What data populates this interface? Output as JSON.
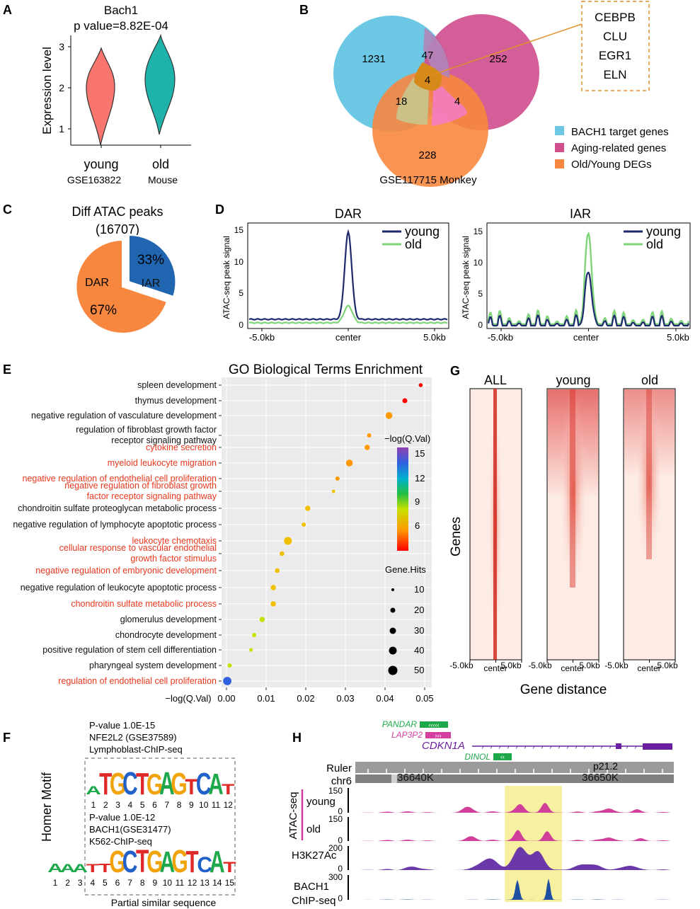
{
  "panels": {
    "A": "A",
    "B": "B",
    "C": "C",
    "D": "D",
    "E": "E",
    "F": "F",
    "G": "G",
    "H": "H"
  },
  "panelA": {
    "title1": "Bach1",
    "title2": "p value=8.82E-04",
    "ylabel": "Expression level",
    "yticks": [
      "1",
      "2",
      "3"
    ],
    "groups": [
      "young",
      "old"
    ],
    "caption_left": "GSE163822",
    "caption_right": "Mouse",
    "colors": {
      "young": "#f8766d",
      "old": "#1fb2aa"
    }
  },
  "panelB": {
    "counts": {
      "blue_only": "1231",
      "pink_only": "252",
      "orange_only": "228",
      "blue_pink": "47",
      "blue_orange": "18",
      "pink_orange": "4",
      "center": "4"
    },
    "genes": [
      "CEBPB",
      "CLU",
      "EGR1",
      "ELN"
    ],
    "legend": [
      "BACH1 target genes",
      "Aging-related genes",
      "Old/Young  DEGs"
    ],
    "caption": "GSE117715  Monkey",
    "colors": {
      "blue": "#6cc8e4",
      "pink": "#d0508e",
      "orange": "#f7873f",
      "center": "#d58a1a"
    }
  },
  "panelC": {
    "title1": "Diff ATAC peaks",
    "title2": "(16707)",
    "dar_label": "DAR",
    "dar_pct": "67%",
    "iar_label": "IAR",
    "iar_pct": "33%"
  },
  "panelD": {
    "dar_title": "DAR",
    "iar_title": "IAR",
    "ylabel": "ATAC-seq peak signal",
    "dar_yticks": [
      "0",
      "5",
      "10",
      "15"
    ],
    "iar_yticks": [
      "0",
      "5",
      "10",
      "15"
    ],
    "xticks": [
      "-5.0kb",
      "center",
      "5.0kb"
    ],
    "legend": [
      "young",
      "old"
    ],
    "colors": {
      "young": "#1f2a6e",
      "old": "#7fd47a"
    }
  },
  "panelE": {
    "title": "GO Biological Terms Enrichment",
    "xlabel": "−log(Q.Val)",
    "xticks": [
      "0.00",
      "0.01",
      "0.02",
      "0.03",
      "0.04",
      "0.05"
    ],
    "color_legend_title": "−log(Q.Val)",
    "color_ticks": [
      "15",
      "12",
      "9",
      "6"
    ],
    "size_legend_title": "Gene.Hits",
    "size_ticks": [
      "10",
      "20",
      "30",
      "40",
      "50"
    ],
    "terms": [
      {
        "line1": "spleen development",
        "line2": "",
        "red": false,
        "x": 0.049,
        "hits": 12,
        "q": 6
      },
      {
        "line1": "thymus development",
        "line2": "",
        "red": false,
        "x": 0.045,
        "hits": 18,
        "q": 6.5
      },
      {
        "line1": "negative regulation of vasculature development",
        "line2": "",
        "red": false,
        "x": 0.041,
        "hits": 30,
        "q": 7
      },
      {
        "line1": "regulation of fibroblast growth factor",
        "line2": "receptor signaling pathway",
        "red": false,
        "x": 0.036,
        "hits": 14,
        "q": 7.5
      },
      {
        "line1": "cytokine secretion",
        "line2": "",
        "red": true,
        "x": 0.0355,
        "hits": 20,
        "q": 7.5
      },
      {
        "line1": "myeloid leukocyte migration",
        "line2": "",
        "red": true,
        "x": 0.031,
        "hits": 30,
        "q": 8
      },
      {
        "line1": "negative regulation of endothelial cell proliferation",
        "line2": "",
        "red": true,
        "x": 0.028,
        "hits": 14,
        "q": 8
      },
      {
        "line1": "negative regulation of fibroblast growth",
        "line2": "factor receptor signaling pathway",
        "red": true,
        "x": 0.027,
        "hits": 8,
        "q": 8.5
      },
      {
        "line1": "chondroitin sulfate proteoglycan metabolic process",
        "line2": "",
        "red": false,
        "x": 0.0205,
        "hits": 20,
        "q": 8.5
      },
      {
        "line1": "negative regulation of lymphocyte apoptotic process",
        "line2": "",
        "red": false,
        "x": 0.0195,
        "hits": 14,
        "q": 8.5
      },
      {
        "line1": "leukocyte chemotaxis",
        "line2": "",
        "red": true,
        "x": 0.0155,
        "hits": 36,
        "q": 8.5
      },
      {
        "line1": "cellular response to vascular endothelial",
        "line2": "growth factor stimulus",
        "red": true,
        "x": 0.014,
        "hits": 16,
        "q": 9
      },
      {
        "line1": "negative regulation of embryonic development",
        "line2": "",
        "red": true,
        "x": 0.0128,
        "hits": 16,
        "q": 9
      },
      {
        "line1": "negative regulation of leukocyte apoptotic process",
        "line2": "",
        "red": false,
        "x": 0.0118,
        "hits": 20,
        "q": 9
      },
      {
        "line1": "chondroitin sulfate metabolic process",
        "line2": "",
        "red": true,
        "x": 0.0118,
        "hits": 20,
        "q": 9
      },
      {
        "line1": "glomerulus development",
        "line2": "",
        "red": false,
        "x": 0.009,
        "hits": 20,
        "q": 9.5
      },
      {
        "line1": "chondrocyte development",
        "line2": "",
        "red": false,
        "x": 0.007,
        "hits": 14,
        "q": 10
      },
      {
        "line1": "positive regulation of stem cell differentiation",
        "line2": "",
        "red": false,
        "x": 0.0062,
        "hits": 10,
        "q": 10
      },
      {
        "line1": "pharyngeal system development",
        "line2": "",
        "red": false,
        "x": 0.0008,
        "hits": 14,
        "q": 11
      },
      {
        "line1": "regulation of endothelial cell proliferation",
        "line2": "",
        "red": true,
        "x": 0.0002,
        "hits": 40,
        "q": 15
      }
    ]
  },
  "panelF": {
    "ylabel": "Homer Motif",
    "motif1": {
      "pvalue": "P-value 1.0E-15",
      "name": "NFE2L2 (GSE37589)",
      "source": "Lymphoblast-ChIP-seq",
      "seq": "ATGCTGAGTCAT",
      "positions": [
        "1",
        "2",
        "3",
        "4",
        "5",
        "6",
        "7",
        "8",
        "9",
        "10",
        "11",
        "12"
      ]
    },
    "motif2": {
      "pvalue": "P-value 1.0E-12",
      "name": "BACH1(GSE31477)",
      "source": "K562-ChIP-seq",
      "seq": "AAATTGCTGAGTCAT",
      "positions": [
        "1",
        "2",
        "3",
        "4",
        "5",
        "6",
        "7",
        "8",
        "9",
        "10",
        "11",
        "12",
        "13",
        "14",
        "15"
      ]
    },
    "caption": "Partial similar sequence"
  },
  "panelG": {
    "columns": [
      "ALL",
      "young",
      "old"
    ],
    "ylabel": "Genes",
    "xticks": [
      "-5.0kb",
      "center",
      "5.0kb"
    ],
    "xlabel": "Gene distance"
  },
  "panelH": {
    "genes": {
      "pandar": "PANDAR",
      "lap3p2": "LAP3P2",
      "cdkn1a": "CDKN1A",
      "dinol": "DINOL"
    },
    "ruler_label": "Ruler",
    "chrom": "chr6",
    "band": "p21.2",
    "pos1": "36640K",
    "pos2": "36650K",
    "group_label": "ATAC-seq",
    "young": "young",
    "old": "old",
    "h3k27ac": "H3K27Ac",
    "bach1_line1": "BACH1",
    "bach1_line2": "ChIP-seq",
    "ticks": {
      "young": [
        "150",
        "0"
      ],
      "old": [
        "150",
        "0"
      ],
      "h3k27ac": [
        "200",
        "0"
      ],
      "bach1": [
        "300",
        "0"
      ]
    },
    "colors": {
      "atac": "#d0409a",
      "h3k27ac": "#6a38a8",
      "bach1": "#1f4fa0",
      "highlight": "#f6f0a0"
    }
  }
}
